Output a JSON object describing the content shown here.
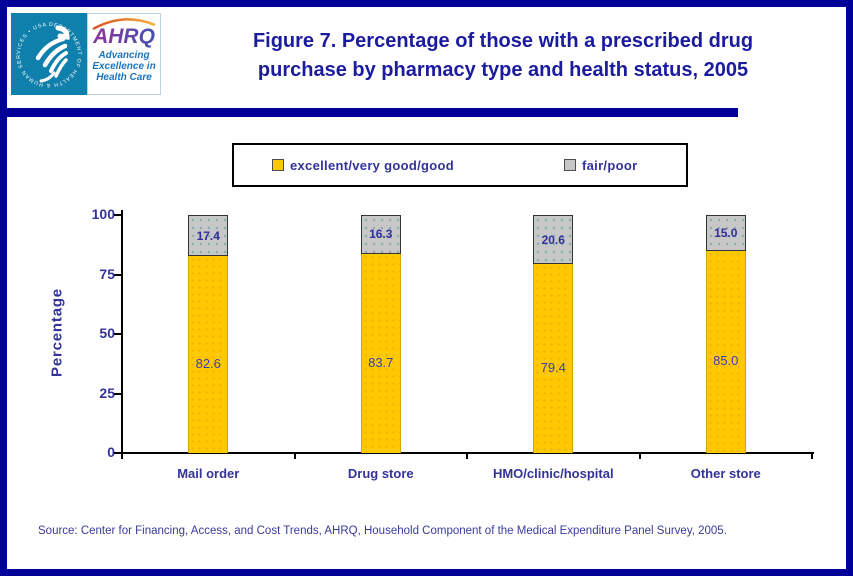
{
  "colors": {
    "border_navy": "#000099",
    "title_navy": "#1b1b9e",
    "text_navy": "#333399",
    "bar_yellow": "#ffc902",
    "bar_gray": "#c7c7c7",
    "hhs_teal": "#0f7fac"
  },
  "logo": {
    "hhs_circle_text": "DEPARTMENT OF HEALTH & HUMAN SERVICES • USA",
    "acronym": "AHRQ",
    "tagline": "Advancing\nExcellence in\nHealth Care"
  },
  "header": {
    "title_line1": "Figure 7. Percentage of those with a prescribed drug",
    "title_line2": "purchase by pharmacy type and health status, 2005"
  },
  "legend": {
    "items": [
      {
        "label": "excellent/very good/good",
        "color": "#ffc902"
      },
      {
        "label": "fair/poor",
        "color": "#c7c7c7"
      }
    ]
  },
  "chart_data": {
    "type": "bar",
    "stacked": true,
    "title": "Figure 7. Percentage of those with a prescribed drug purchase by pharmacy type and health status, 2005",
    "categories": [
      "Mail order",
      "Drug store",
      "HMO/clinic/hospital",
      "Other store"
    ],
    "series": [
      {
        "name": "excellent/very good/good",
        "color": "#ffc902",
        "values": [
          82.6,
          83.7,
          79.4,
          85.0
        ]
      },
      {
        "name": "fair/poor",
        "color": "#c7c7c7",
        "values": [
          17.4,
          16.3,
          20.6,
          15.0
        ]
      }
    ],
    "xlabel": "",
    "ylabel": "Percentage",
    "ylim": [
      0,
      100
    ],
    "yticks": [
      0,
      25,
      50,
      75,
      100
    ],
    "grid": false,
    "legend_position": "top",
    "value_labels": true
  },
  "footer": {
    "source": "Source: Center for Financing, Access, and Cost Trends, AHRQ, Household Component of the Medical Expenditure Panel Survey, 2005."
  }
}
